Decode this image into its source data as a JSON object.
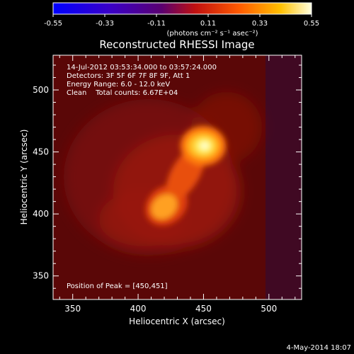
{
  "colorbar": {
    "ticks": [
      "-0.55",
      "-0.33",
      "-0.11",
      "0.11",
      "0.33",
      "0.55"
    ],
    "unit_label": "(photons cm⁻² s⁻¹ asec⁻²)",
    "range": [
      -0.55,
      0.55
    ]
  },
  "chart_data": {
    "type": "heatmap",
    "title": "Reconstructed RHESSI Image",
    "xlabel": "Heliocentric X (arcsec)",
    "ylabel": "Heliocentric Y (arcsec)",
    "xlim": [
      335,
      525
    ],
    "ylim": [
      331,
      528
    ],
    "xticks": [
      350,
      400,
      450,
      500
    ],
    "yticks": [
      350,
      400,
      450,
      500
    ],
    "annotations": [
      "14-Jul-2012 03:53:34.000 to 03:57:24.000",
      "Detectors: 3F 5F 6F 7F 8F 9F, Att 1",
      "Energy Range: 6.0 - 12.0 keV",
      "Clean    Total counts: 6.67E+04"
    ],
    "peak_label": "Position of Peak = [450,451]",
    "sources": [
      {
        "x": 450,
        "y": 451,
        "intensity": 0.55
      },
      {
        "x": 422,
        "y": 407,
        "intensity": 0.42
      }
    ]
  },
  "footer": {
    "date": "4-May-2014 18:07"
  }
}
